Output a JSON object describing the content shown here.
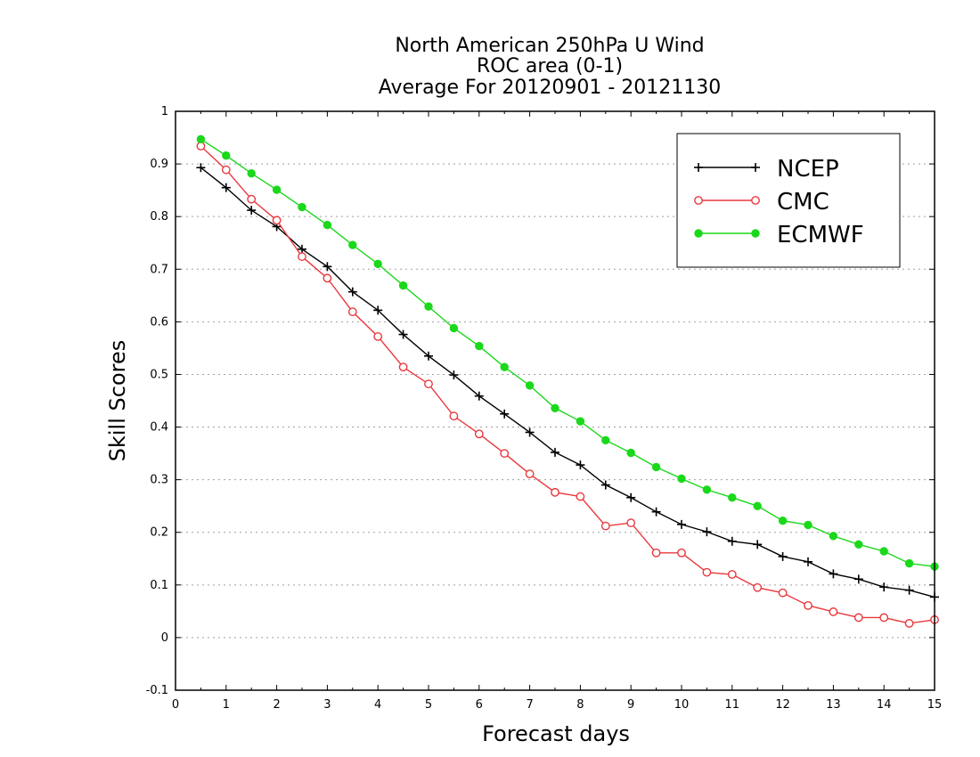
{
  "title_lines": [
    "North American 250hPa U Wind",
    "ROC area (0-1)",
    "Average For 20120901 - 20121130"
  ],
  "colors": {
    "NCEP": "#000000",
    "CMC": "#e8383d",
    "ECMWF": "#1ad81a",
    "grid": "#a0a0a0",
    "frame": "#000000"
  },
  "chart_data": {
    "type": "line",
    "xlabel": "Forecast days",
    "ylabel": "Skill Scores",
    "xlim": [
      0,
      15
    ],
    "ylim": [
      -0.1,
      1
    ],
    "x_ticks": [
      0,
      1,
      2,
      3,
      4,
      5,
      6,
      7,
      8,
      9,
      10,
      11,
      12,
      13,
      14,
      15
    ],
    "y_ticks": [
      -0.1,
      0,
      0.1,
      0.2,
      0.3,
      0.4,
      0.5,
      0.6,
      0.7,
      0.8,
      0.9,
      1
    ],
    "y_tick_labels": [
      "-0.1",
      "0",
      "0.1",
      "0.2",
      "0.3",
      "0.4",
      "0.5",
      "0.6",
      "0.7",
      "0.8",
      "0.9",
      "1"
    ],
    "grid": "horizontal dotted",
    "legend_position": "top-right",
    "x": [
      0.5,
      1,
      1.5,
      2,
      2.5,
      3,
      3.5,
      4,
      4.5,
      5,
      5.5,
      6,
      6.5,
      7,
      7.5,
      8,
      8.5,
      9,
      9.5,
      10,
      10.5,
      11,
      11.5,
      12,
      12.5,
      13,
      13.5,
      14,
      14.5,
      15
    ],
    "series": [
      {
        "name": "NCEP",
        "marker": "plus",
        "values": [
          0.893,
          0.855,
          0.812,
          0.781,
          0.738,
          0.705,
          0.657,
          0.622,
          0.576,
          0.535,
          0.499,
          0.459,
          0.425,
          0.39,
          0.352,
          0.328,
          0.29,
          0.266,
          0.239,
          0.215,
          0.201,
          0.183,
          0.177,
          0.154,
          0.144,
          0.121,
          0.111,
          0.096,
          0.09,
          0.077
        ]
      },
      {
        "name": "CMC",
        "marker": "circle-open",
        "values": [
          0.934,
          0.889,
          0.833,
          0.793,
          0.724,
          0.683,
          0.619,
          0.572,
          0.514,
          0.482,
          0.421,
          0.387,
          0.35,
          0.311,
          0.276,
          0.268,
          0.212,
          0.218,
          0.161,
          0.161,
          0.124,
          0.12,
          0.095,
          0.085,
          0.061,
          0.049,
          0.038,
          0.038,
          0.027,
          0.034
        ]
      },
      {
        "name": "ECMWF",
        "marker": "circle-filled",
        "values": [
          0.947,
          0.916,
          0.882,
          0.851,
          0.818,
          0.784,
          0.746,
          0.71,
          0.669,
          0.629,
          0.588,
          0.554,
          0.514,
          0.479,
          0.436,
          0.411,
          0.375,
          0.351,
          0.324,
          0.302,
          0.281,
          0.266,
          0.25,
          0.222,
          0.214,
          0.193,
          0.177,
          0.164,
          0.141,
          0.135
        ]
      }
    ]
  }
}
